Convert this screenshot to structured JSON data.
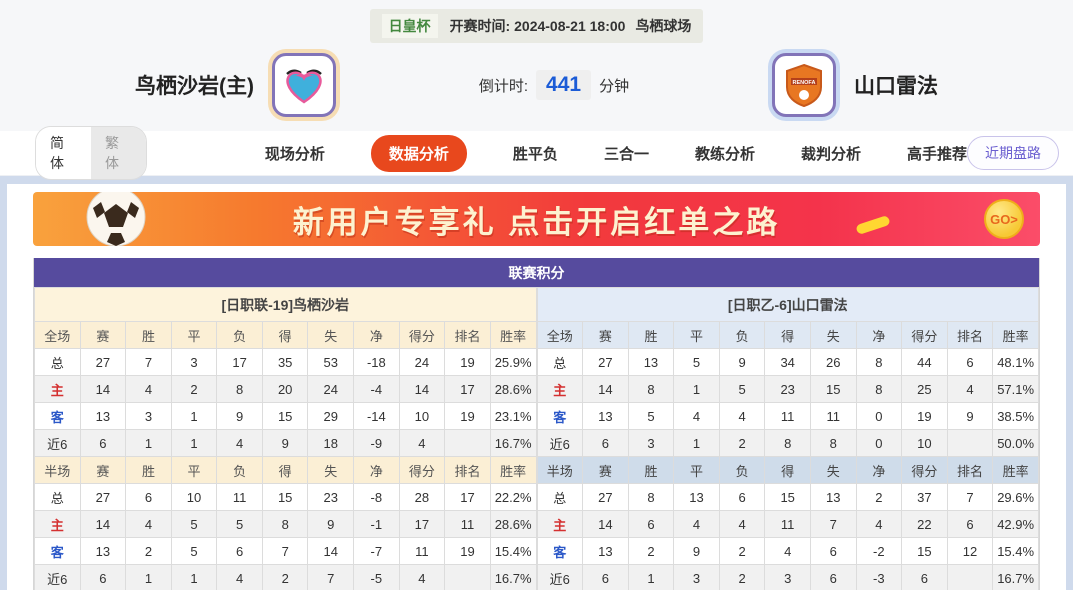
{
  "header": {
    "tournament": "日皇杯",
    "kickoff_label": "开赛时间:",
    "kickoff_time": "2024-08-21 18:00",
    "venue": "鸟栖球场",
    "home_team": "鸟栖沙岩(主)",
    "away_team": "山口雷法",
    "countdown_label": "倒计时:",
    "countdown_value": "441",
    "countdown_unit": "分钟"
  },
  "nav": {
    "lang_simplified": "简体",
    "lang_traditional": "繁体",
    "tabs": [
      "现场分析",
      "数据分析",
      "胜平负",
      "三合一",
      "教练分析",
      "裁判分析",
      "高手推荐"
    ],
    "active_tab": "数据分析",
    "recent_button": "近期盘路"
  },
  "banner": {
    "text": "新用户专享礼  点击开启红单之路",
    "go_label": "GO>"
  },
  "league_table": {
    "title": "联赛积分",
    "home_subtitle": "[日职联-19]鸟栖沙岩",
    "away_subtitle": "[日职乙-6]山口雷法",
    "columns_full": [
      "全场",
      "赛",
      "胜",
      "平",
      "负",
      "得",
      "失",
      "净",
      "得分",
      "排名",
      "胜率"
    ],
    "columns_half": [
      "半场",
      "赛",
      "胜",
      "平",
      "负",
      "得",
      "失",
      "净",
      "得分",
      "排名",
      "胜率"
    ],
    "home_full_rows": [
      {
        "label": "总",
        "type": "total",
        "cells": [
          "27",
          "7",
          "3",
          "17",
          "35",
          "53",
          "-18",
          "24",
          "19",
          "25.9%"
        ]
      },
      {
        "label": "主",
        "type": "home",
        "cells": [
          "14",
          "4",
          "2",
          "8",
          "20",
          "24",
          "-4",
          "14",
          "17",
          "28.6%"
        ]
      },
      {
        "label": "客",
        "type": "away",
        "cells": [
          "13",
          "3",
          "1",
          "9",
          "15",
          "29",
          "-14",
          "10",
          "19",
          "23.1%"
        ]
      },
      {
        "label": "近6",
        "type": "recent",
        "cells": [
          "6",
          "1",
          "1",
          "4",
          "9",
          "18",
          "-9",
          "4",
          "",
          "16.7%"
        ]
      }
    ],
    "home_half_rows": [
      {
        "label": "总",
        "type": "total",
        "cells": [
          "27",
          "6",
          "10",
          "11",
          "15",
          "23",
          "-8",
          "28",
          "17",
          "22.2%"
        ]
      },
      {
        "label": "主",
        "type": "home",
        "cells": [
          "14",
          "4",
          "5",
          "5",
          "8",
          "9",
          "-1",
          "17",
          "11",
          "28.6%"
        ]
      },
      {
        "label": "客",
        "type": "away",
        "cells": [
          "13",
          "2",
          "5",
          "6",
          "7",
          "14",
          "-7",
          "11",
          "19",
          "15.4%"
        ]
      },
      {
        "label": "近6",
        "type": "recent",
        "cells": [
          "6",
          "1",
          "1",
          "4",
          "2",
          "7",
          "-5",
          "4",
          "",
          "16.7%"
        ]
      }
    ],
    "away_full_rows": [
      {
        "label": "总",
        "type": "total",
        "cells": [
          "27",
          "13",
          "5",
          "9",
          "34",
          "26",
          "8",
          "44",
          "6",
          "48.1%"
        ]
      },
      {
        "label": "主",
        "type": "home",
        "cells": [
          "14",
          "8",
          "1",
          "5",
          "23",
          "15",
          "8",
          "25",
          "4",
          "57.1%"
        ]
      },
      {
        "label": "客",
        "type": "away",
        "cells": [
          "13",
          "5",
          "4",
          "4",
          "11",
          "11",
          "0",
          "19",
          "9",
          "38.5%"
        ]
      },
      {
        "label": "近6",
        "type": "recent",
        "cells": [
          "6",
          "3",
          "1",
          "2",
          "8",
          "8",
          "0",
          "10",
          "",
          "50.0%"
        ]
      }
    ],
    "away_half_rows": [
      {
        "label": "总",
        "type": "total",
        "cells": [
          "27",
          "8",
          "13",
          "6",
          "15",
          "13",
          "2",
          "37",
          "7",
          "29.6%"
        ]
      },
      {
        "label": "主",
        "type": "home",
        "cells": [
          "14",
          "6",
          "4",
          "4",
          "11",
          "7",
          "4",
          "22",
          "6",
          "42.9%"
        ]
      },
      {
        "label": "客",
        "type": "away",
        "cells": [
          "13",
          "2",
          "9",
          "2",
          "4",
          "6",
          "-2",
          "15",
          "12",
          "15.4%"
        ]
      },
      {
        "label": "近6",
        "type": "recent",
        "cells": [
          "6",
          "1",
          "3",
          "2",
          "3",
          "6",
          "-3",
          "6",
          "",
          "16.7%"
        ]
      }
    ]
  },
  "colors": {
    "accent_tab": "#e8481d",
    "table_header_purple": "#564b9e",
    "home_label_red": "#d43030",
    "away_label_blue": "#2b58c8",
    "countdown_blue": "#1b5bd6",
    "tournament_green": "#43883f",
    "home_header_cream": "#fbefd5",
    "away_header_blue": "#dfe8f3"
  }
}
